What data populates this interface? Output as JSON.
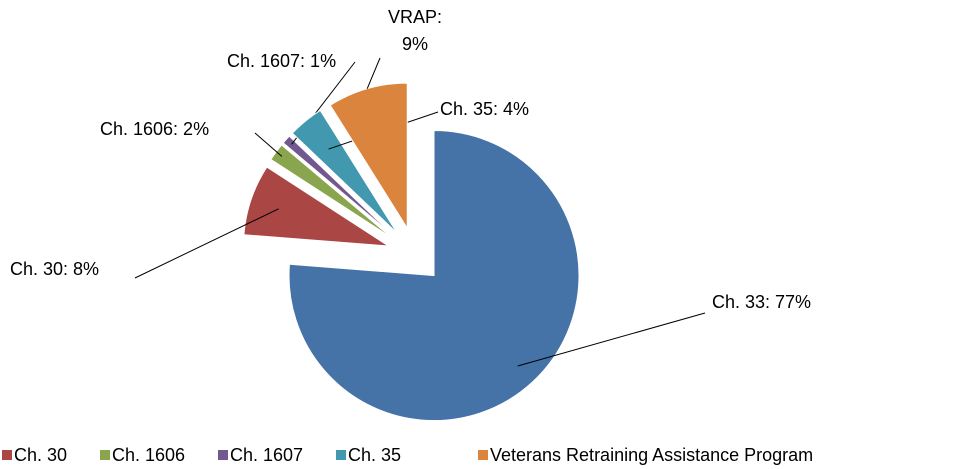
{
  "chart_data": {
    "type": "pie",
    "categories": [
      "Ch. 33",
      "Ch. 30",
      "Ch. 1606",
      "Ch. 1607",
      "Ch. 35",
      "Veterans Retraining Assistance Program"
    ],
    "values": [
      77,
      8,
      2,
      1,
      4,
      9
    ],
    "value_labels": [
      "Ch. 33: 77%",
      "Ch. 30: 8%",
      "Ch. 1606: 2%",
      "Ch. 1607: 1%",
      "Ch. 35: 4%",
      "VRAP: 9%"
    ],
    "colors": [
      "#4572a7",
      "#aa4643",
      "#89a54e",
      "#71588f",
      "#4198af",
      "#db843d"
    ],
    "legend": "bottom"
  }
}
